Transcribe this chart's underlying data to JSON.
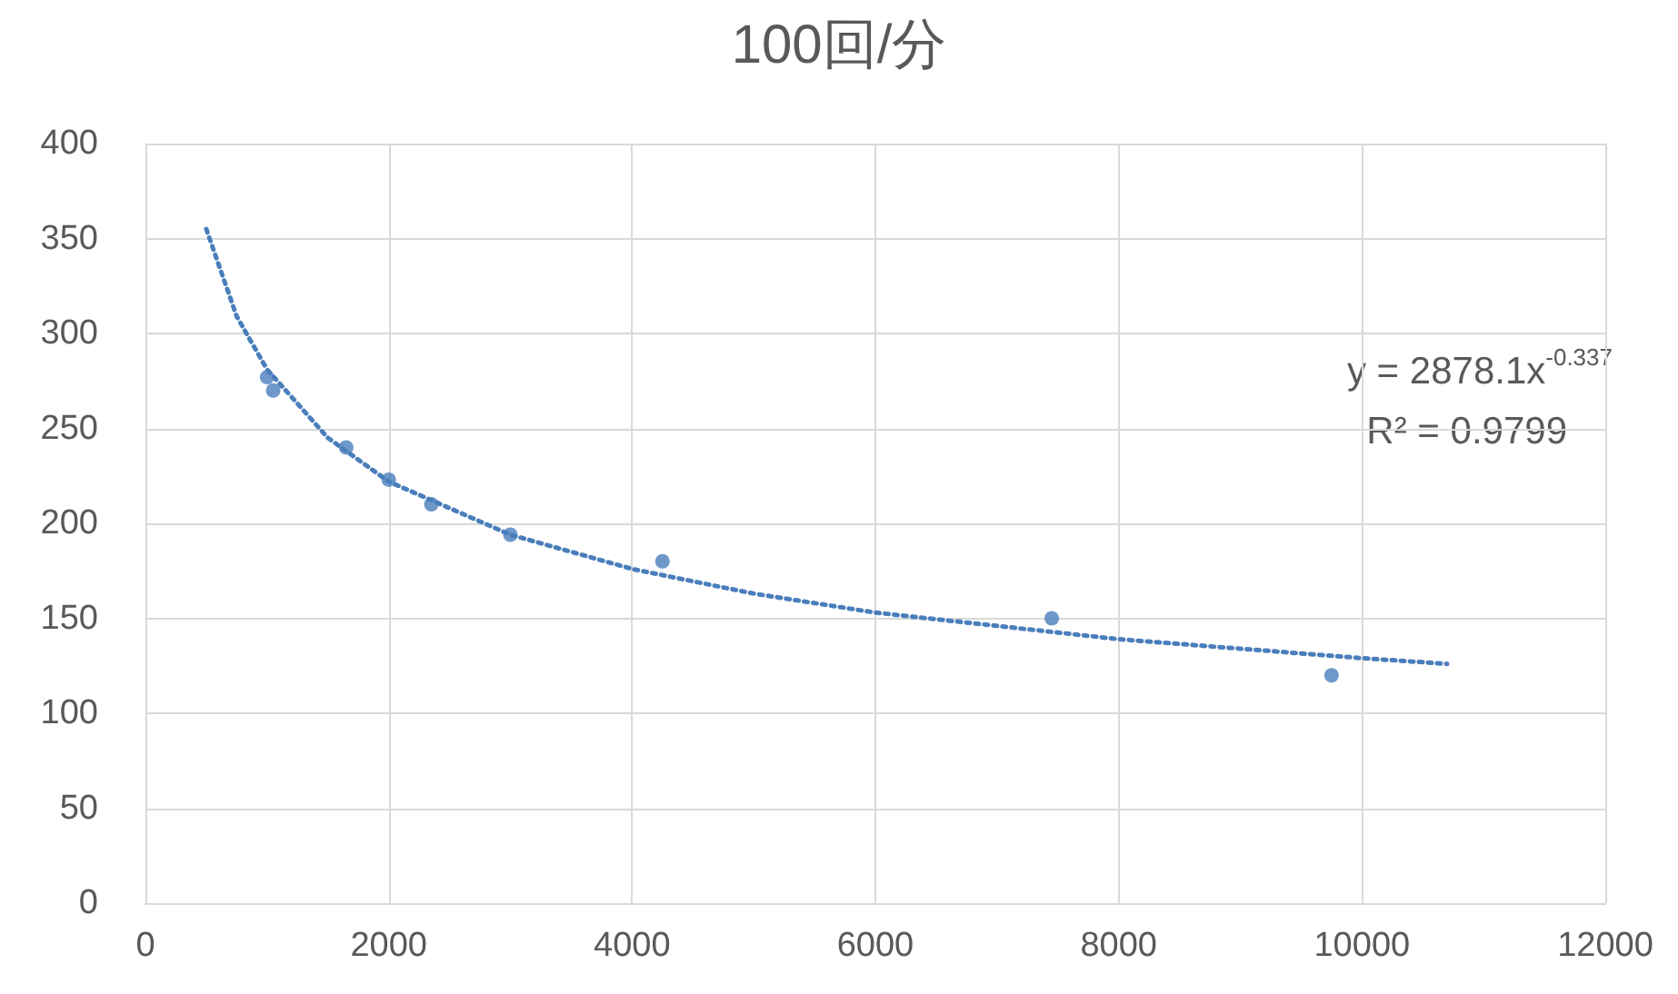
{
  "chart_data": {
    "type": "scatter",
    "title": "100回/分",
    "xlim": [
      0,
      12000
    ],
    "xticks": [
      0,
      2000,
      4000,
      6000,
      8000,
      10000,
      12000
    ],
    "ylim": [
      0,
      400
    ],
    "yticks": [
      0,
      50,
      100,
      150,
      200,
      250,
      300,
      350,
      400
    ],
    "grid": true,
    "series": [
      {
        "color": "#4a7ebb",
        "marker": "circle",
        "x": [
          1000,
          1050,
          1650,
          2000,
          2350,
          3000,
          4250,
          7450,
          9750
        ],
        "values": [
          277,
          270,
          240,
          223,
          210,
          194,
          180,
          150,
          120
        ]
      },
      {
        "type": "line",
        "color": "#4a7ebb",
        "marker": "none",
        "line_style": "dotted",
        "x": [
          500,
          750,
          1000,
          1500,
          2000,
          3000,
          4000,
          5000,
          6000,
          7000,
          8000,
          9000,
          10000,
          10700
        ],
        "values": [
          355,
          309,
          281,
          245,
          222,
          194,
          176,
          163,
          153,
          146,
          139,
          134,
          129,
          126
        ]
      }
    ],
    "annotations": [
      "y = 2878.1x$^{-0.337}$",
      "R² = 0.9799"
    ]
  }
}
